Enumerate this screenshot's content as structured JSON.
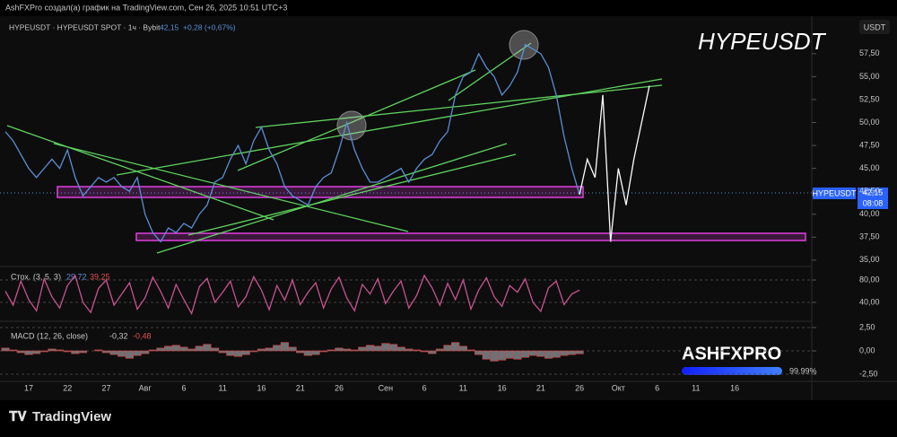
{
  "header": {
    "credit": "AshFXPro создал(а) график на TradingView.com, Сен 26, 2025 10:51 UTC+3",
    "symbol": "HYPEUSDT · HYPEUSDT SPOT · 1ч · Bybit",
    "last": "42,15",
    "change": "+0,28 (+0,67%)"
  },
  "price_tag": {
    "symbol": "HYPEUSDT",
    "price": "42,15",
    "countdown": "08:08"
  },
  "watermark": {
    "brand": "ASHFXPRO",
    "progress": "99.99%"
  },
  "footer": "TradingView",
  "chart_data": [
    {
      "type": "line",
      "title": "HYPEUSDT",
      "y_label": "USDT",
      "categories": [
        null,
        null,
        null,
        "17",
        null,
        null,
        null,
        null,
        "22",
        null,
        null,
        null,
        null,
        "27",
        null,
        null,
        null,
        null,
        "Авг",
        null,
        null,
        null,
        null,
        "6",
        null,
        null,
        null,
        null,
        "11",
        null,
        null,
        null,
        null,
        "16",
        null,
        null,
        null,
        null,
        "21",
        null,
        null,
        null,
        null,
        "26",
        null,
        null,
        null,
        null,
        null,
        "Сен",
        null,
        null,
        null,
        null,
        "6",
        null,
        null,
        null,
        null,
        "11",
        null,
        null,
        null,
        null,
        "16",
        null,
        null,
        null,
        null,
        "21",
        null,
        null,
        null,
        null,
        "26",
        null,
        null,
        null,
        null,
        "Окт",
        null,
        null,
        null,
        null,
        "6",
        null,
        null,
        null,
        null,
        "11",
        null,
        null,
        null,
        null,
        "16",
        null,
        null,
        null,
        null
      ],
      "series": [
        {
          "color": "#5b8fd6",
          "values": [
            49,
            48,
            46.5,
            45,
            44,
            45,
            46,
            45,
            47,
            44,
            42,
            43,
            44,
            43.5,
            44,
            43,
            42.5,
            44,
            40,
            38,
            37,
            38.5,
            38,
            39,
            38.5,
            40,
            41,
            43.5,
            44,
            46,
            47.5,
            45.5,
            48,
            49.5,
            47,
            45.5,
            43,
            42,
            41.5,
            41,
            43,
            44,
            44.5,
            47,
            50,
            47,
            45,
            43.5,
            43.5,
            44,
            44.5,
            45,
            43.5,
            45,
            46,
            46.5,
            48,
            49,
            53,
            55,
            55.5,
            57.5,
            56,
            55,
            53,
            54,
            55.5,
            58.5,
            58,
            57.5,
            56,
            53,
            48.5,
            45,
            42.15,
            null,
            null,
            null,
            null,
            null,
            null,
            null,
            null,
            null,
            null,
            null,
            null,
            null,
            null,
            null,
            null,
            null,
            null,
            null,
            null,
            null,
            null,
            null,
            null
          ]
        },
        {
          "color": "#ffffff",
          "values": [
            null,
            null,
            null,
            null,
            null,
            null,
            null,
            null,
            null,
            null,
            null,
            null,
            null,
            null,
            null,
            null,
            null,
            null,
            null,
            null,
            null,
            null,
            null,
            null,
            null,
            null,
            null,
            null,
            null,
            null,
            null,
            null,
            null,
            null,
            null,
            null,
            null,
            null,
            null,
            null,
            null,
            null,
            null,
            null,
            null,
            null,
            null,
            null,
            null,
            null,
            null,
            null,
            null,
            null,
            null,
            null,
            null,
            null,
            null,
            null,
            null,
            null,
            null,
            null,
            null,
            null,
            null,
            null,
            null,
            null,
            null,
            null,
            null,
            null,
            42.15,
            46,
            44,
            53,
            37,
            45,
            41,
            46,
            50,
            54,
            null,
            null,
            null,
            null,
            null,
            null,
            null,
            null,
            null,
            null,
            null,
            null,
            null,
            null,
            null
          ]
        }
      ],
      "ylim": [
        34.3,
        61.4
      ],
      "yticks": [
        {
          "value": 35,
          "label": "35,00"
        },
        {
          "value": 37.5,
          "label": "37,50"
        },
        {
          "value": 40,
          "label": "40,00"
        },
        {
          "value": 42.5,
          "label": "42,50"
        },
        {
          "value": 45,
          "label": "45,00"
        },
        {
          "value": 47.5,
          "label": "47,50"
        },
        {
          "value": 50,
          "label": "50,00"
        },
        {
          "value": 52.5,
          "label": "52,50"
        },
        {
          "value": 55,
          "label": "55,00"
        },
        {
          "value": 57.5,
          "label": "57,50"
        }
      ]
    },
    {
      "type": "line",
      "legend": "Стох. (3, 5, 3)",
      "legend_values": [
        "29,72",
        "39,25"
      ],
      "series": [
        {
          "color": "#c95391",
          "values": [
            60,
            35,
            78,
            45,
            25,
            82,
            50,
            30,
            70,
            88,
            40,
            22,
            65,
            80,
            35,
            55,
            75,
            28,
            48,
            85,
            60,
            30,
            72,
            45,
            20,
            68,
            83,
            40,
            58,
            78,
            32,
            50,
            86,
            62,
            27,
            70,
            44,
            80,
            36,
            58,
            75,
            30,
            64,
            85,
            48,
            25,
            72,
            55,
            82,
            38,
            60,
            78,
            30,
            52,
            88,
            66,
            35,
            74,
            45,
            80,
            28,
            62,
            84,
            50,
            33,
            70,
            58,
            82,
            40,
            24,
            66,
            78,
            36,
            55,
            62
          ]
        }
      ],
      "ylim": [
        6.4,
        102.4
      ],
      "yticks": [
        {
          "value": 80,
          "label": "80,00"
        },
        {
          "value": 40,
          "label": "40,00"
        }
      ]
    },
    {
      "type": "bar",
      "legend": "MACD (12, 26, close)",
      "legend_values": [
        "-0,32",
        "-0,48"
      ],
      "series": [
        {
          "color": "#9a9ca3",
          "values": [
            0.3,
            0.1,
            -0.2,
            -0.4,
            -0.3,
            -0.1,
            0.2,
            0.1,
            -0.1,
            -0.3,
            -0.2,
            0,
            0.1,
            -0.2,
            -0.4,
            -0.6,
            -0.8,
            -0.5,
            -0.3,
            0.1,
            0.3,
            0.5,
            0.6,
            0.4,
            0.2,
            0.5,
            0.7,
            0.3,
            -0.2,
            -0.5,
            -0.6,
            -0.4,
            -0.1,
            0.2,
            0.3,
            0.6,
            0.9,
            0.4,
            -0.2,
            -0.5,
            -0.4,
            -0.1,
            0.1,
            0.3,
            0.2,
            0.1,
            0.4,
            0.6,
            0.5,
            0.8,
            0.7,
            0.4,
            0.2,
            0.1,
            -0.1,
            -0.3,
            0.2,
            0.6,
            0.9,
            0.5,
            0.1,
            -0.4,
            -0.9,
            -1.1,
            -1,
            -0.8,
            -0.9,
            -0.7,
            -0.5,
            -0.6,
            -0.8,
            -0.7,
            -0.5,
            -0.4,
            -0.32
          ]
        }
      ],
      "ylim": [
        -3.27,
        2.98
      ],
      "yticks": [
        {
          "value": 2.5,
          "label": "2,50"
        },
        {
          "value": 0,
          "label": "0,00"
        },
        {
          "value": -2.5,
          "label": "-2,50"
        }
      ]
    }
  ]
}
